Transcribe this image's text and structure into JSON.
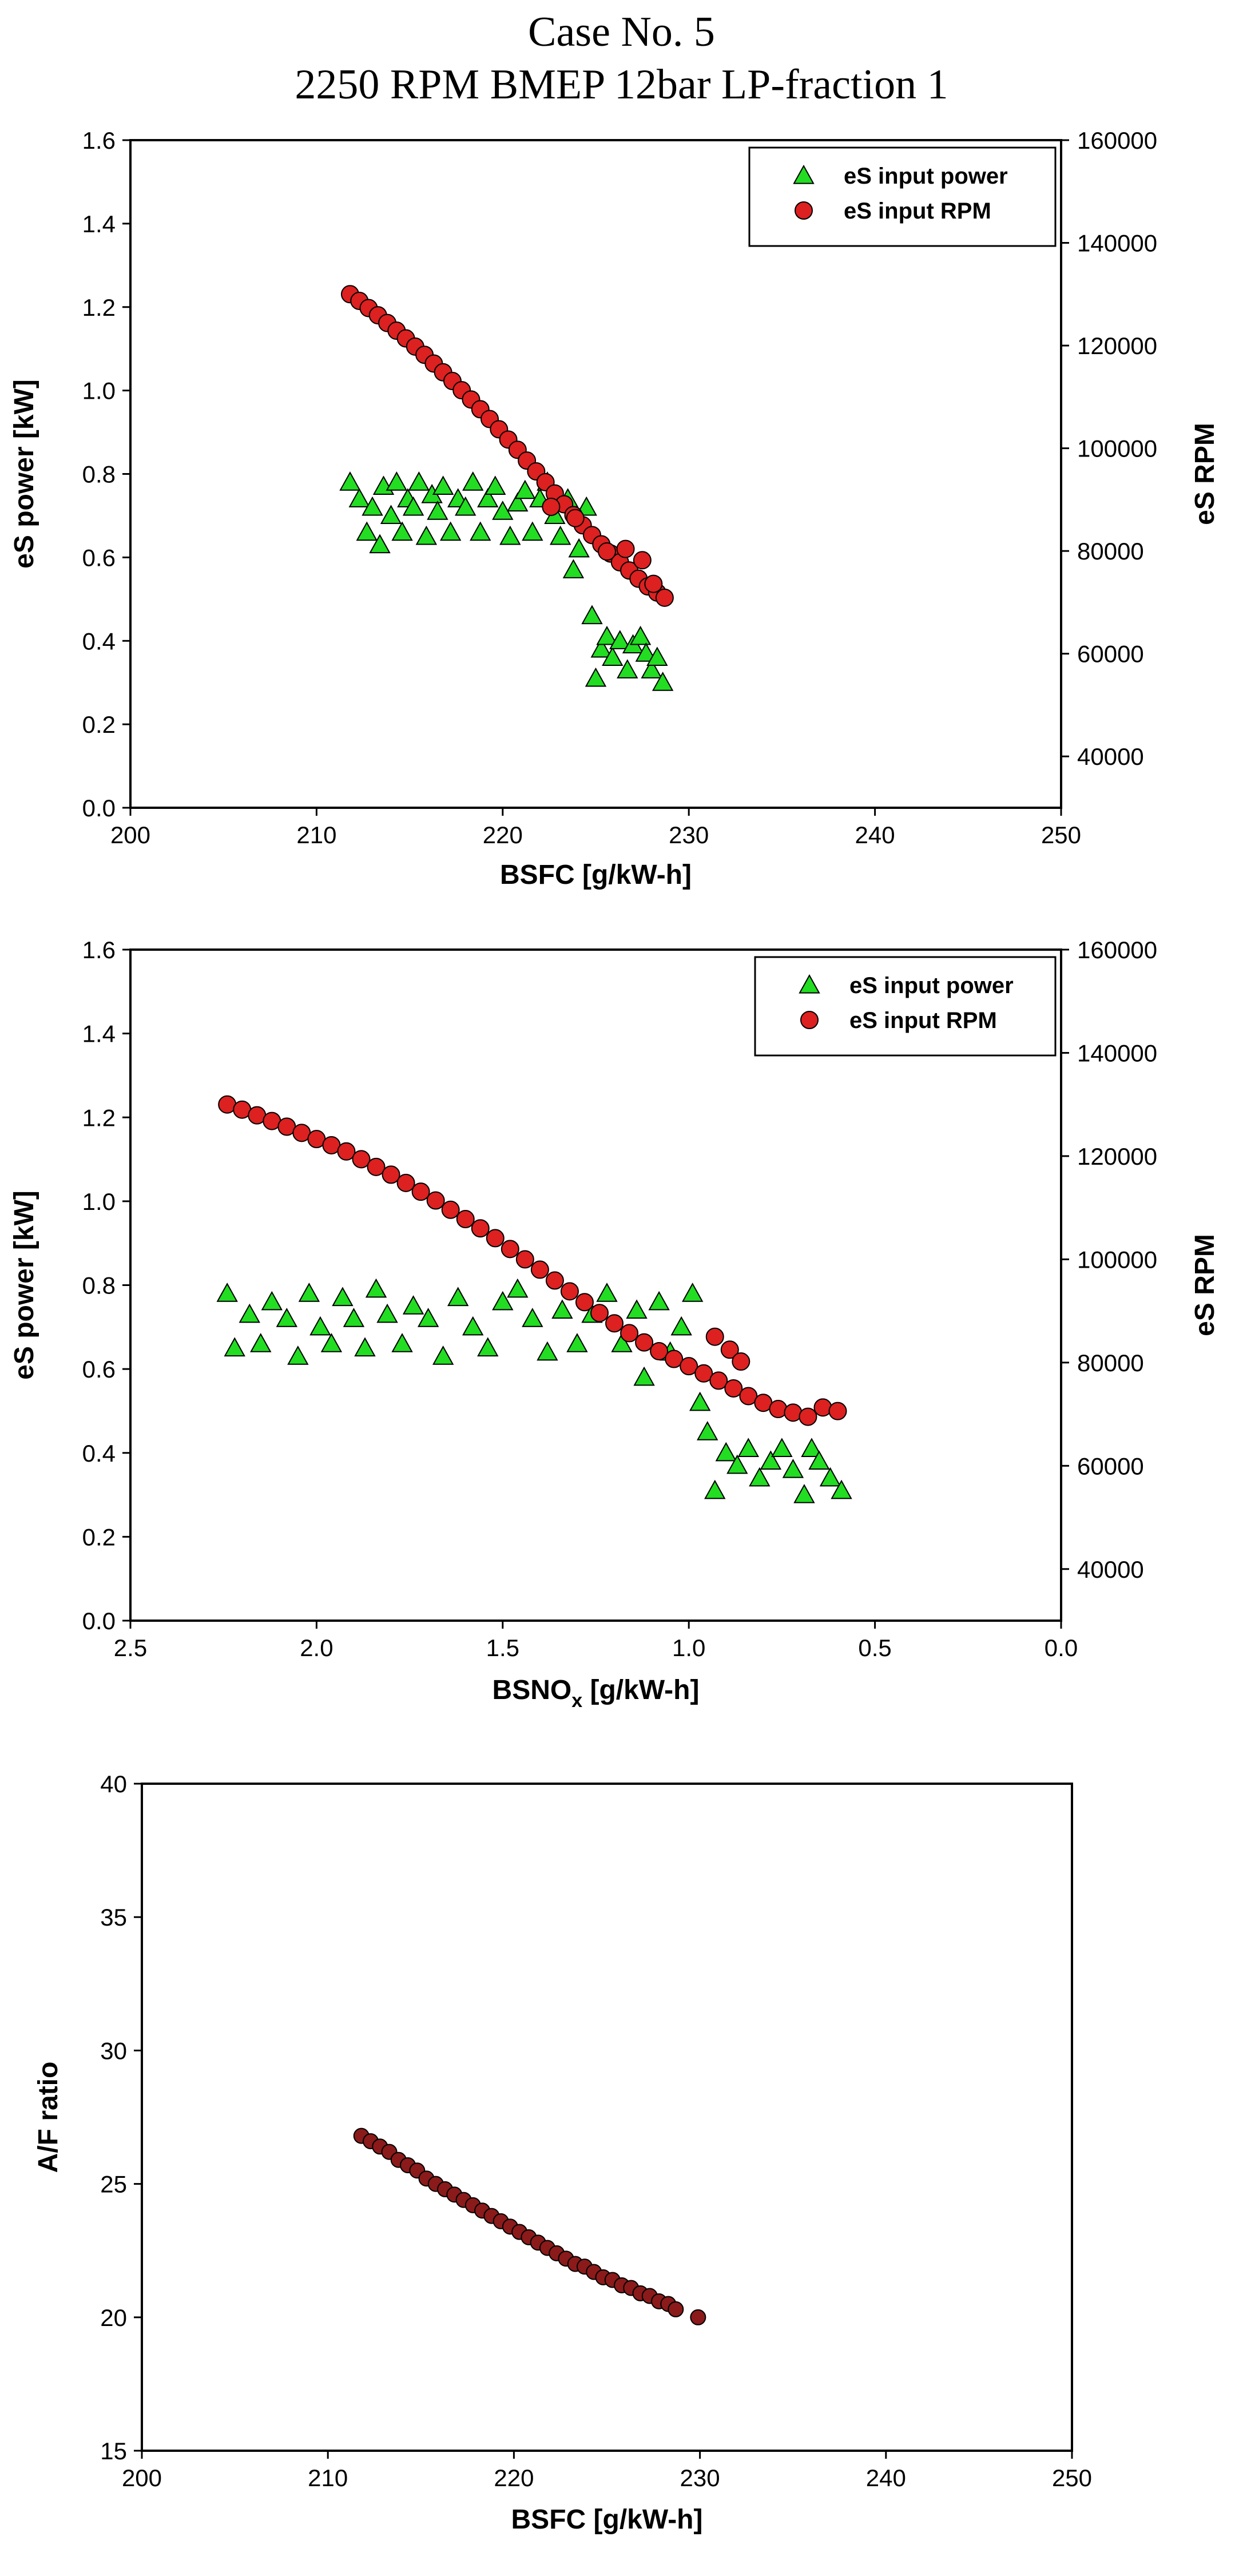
{
  "header": {
    "title_line1": "Case No. 5",
    "title_line2": "2250 RPM BMEP 12bar LP-fraction 1"
  },
  "colors": {
    "power_marker": "#22dd22",
    "rpm_marker": "#dd2020",
    "af_marker": "#8b1a1a",
    "marker_edge": "#000000"
  },
  "chart_data": [
    {
      "type": "scatter",
      "title": "",
      "xlabel": "BSFC [g/kW-h]",
      "ylabel": "eS power [kW]",
      "y2label": "eS RPM",
      "xlim": [
        200,
        250
      ],
      "ylim": [
        0.0,
        1.6
      ],
      "y2lim": [
        30000,
        160000
      ],
      "xticks": [
        "200",
        "210",
        "220",
        "230",
        "240",
        "250"
      ],
      "yticks": [
        "0.0",
        "0.2",
        "0.4",
        "0.6",
        "0.8",
        "1.0",
        "1.2",
        "1.4",
        "1.6"
      ],
      "y2ticks": [
        "40000",
        "60000",
        "80000",
        "100000",
        "120000",
        "140000",
        "160000"
      ],
      "legend": [
        "eS input power",
        "eS input RPM"
      ],
      "legend_position": "top-right",
      "series": [
        {
          "name": "eS input power",
          "axis": "left",
          "marker": "triangle",
          "points": [
            [
              211.8,
              0.78
            ],
            [
              212.3,
              0.74
            ],
            [
              212.7,
              0.66
            ],
            [
              213.0,
              0.72
            ],
            [
              213.4,
              0.63
            ],
            [
              213.6,
              0.77
            ],
            [
              214.0,
              0.7
            ],
            [
              214.3,
              0.78
            ],
            [
              214.6,
              0.66
            ],
            [
              214.9,
              0.74
            ],
            [
              215.2,
              0.72
            ],
            [
              215.5,
              0.78
            ],
            [
              215.9,
              0.65
            ],
            [
              216.2,
              0.75
            ],
            [
              216.5,
              0.71
            ],
            [
              216.8,
              0.77
            ],
            [
              217.2,
              0.66
            ],
            [
              217.6,
              0.74
            ],
            [
              218.0,
              0.72
            ],
            [
              218.4,
              0.78
            ],
            [
              218.8,
              0.66
            ],
            [
              219.2,
              0.74
            ],
            [
              219.6,
              0.77
            ],
            [
              220.0,
              0.71
            ],
            [
              220.4,
              0.65
            ],
            [
              220.8,
              0.73
            ],
            [
              221.2,
              0.76
            ],
            [
              221.6,
              0.66
            ],
            [
              222.0,
              0.74
            ],
            [
              222.4,
              0.78
            ],
            [
              222.8,
              0.7
            ],
            [
              223.1,
              0.65
            ],
            [
              223.5,
              0.74
            ],
            [
              223.8,
              0.57
            ],
            [
              224.1,
              0.62
            ],
            [
              224.5,
              0.72
            ],
            [
              224.8,
              0.46
            ],
            [
              225.0,
              0.31
            ],
            [
              225.3,
              0.38
            ],
            [
              225.6,
              0.41
            ],
            [
              225.9,
              0.36
            ],
            [
              226.3,
              0.4
            ],
            [
              226.7,
              0.33
            ],
            [
              227.0,
              0.39
            ],
            [
              227.4,
              0.41
            ],
            [
              227.7,
              0.37
            ],
            [
              228.0,
              0.33
            ],
            [
              228.3,
              0.36
            ],
            [
              228.6,
              0.3
            ]
          ]
        },
        {
          "name": "eS input RPM",
          "axis": "right",
          "marker": "circle",
          "points": [
            [
              211.8,
              130000
            ],
            [
              212.3,
              128700
            ],
            [
              212.8,
              127300
            ],
            [
              213.3,
              125900
            ],
            [
              213.8,
              124400
            ],
            [
              214.3,
              122900
            ],
            [
              214.8,
              121400
            ],
            [
              215.3,
              119800
            ],
            [
              215.8,
              118200
            ],
            [
              216.3,
              116500
            ],
            [
              216.8,
              114800
            ],
            [
              217.3,
              113100
            ],
            [
              217.8,
              111300
            ],
            [
              218.3,
              109500
            ],
            [
              218.8,
              107600
            ],
            [
              219.3,
              105700
            ],
            [
              219.8,
              103700
            ],
            [
              220.3,
              101700
            ],
            [
              220.8,
              99700
            ],
            [
              221.3,
              97600
            ],
            [
              221.8,
              95500
            ],
            [
              222.3,
              93400
            ],
            [
              222.8,
              91200
            ],
            [
              223.3,
              89100
            ],
            [
              223.8,
              87000
            ],
            [
              224.3,
              85000
            ],
            [
              224.8,
              83100
            ],
            [
              225.3,
              81300
            ],
            [
              225.8,
              79500
            ],
            [
              226.3,
              77800
            ],
            [
              226.8,
              76200
            ],
            [
              227.3,
              74600
            ],
            [
              227.8,
              73100
            ],
            [
              228.3,
              71900
            ],
            [
              228.7,
              70900
            ],
            [
              225.6,
              79900
            ],
            [
              226.6,
              80400
            ],
            [
              227.5,
              78200
            ],
            [
              228.1,
              73600
            ],
            [
              223.9,
              86400
            ],
            [
              222.6,
              88600
            ]
          ]
        }
      ]
    },
    {
      "type": "scatter",
      "title": "",
      "xlabel": "BSNO",
      "xlabel_sub": "x",
      "xlabel_unit": "[g/kW-h]",
      "ylabel": "eS power [kW]",
      "y2label": "eS RPM",
      "xlim": [
        2.5,
        0.0
      ],
      "ylim": [
        0.0,
        1.6
      ],
      "y2lim": [
        30000,
        160000
      ],
      "xticks": [
        "2.5",
        "2.0",
        "1.5",
        "1.0",
        "0.5",
        "0.0"
      ],
      "yticks": [
        "0.0",
        "0.2",
        "0.4",
        "0.6",
        "0.8",
        "1.0",
        "1.2",
        "1.4",
        "1.6"
      ],
      "y2ticks": [
        "40000",
        "60000",
        "80000",
        "100000",
        "120000",
        "140000",
        "160000"
      ],
      "legend": [
        "eS input power",
        "eS input RPM"
      ],
      "legend_position": "top-right",
      "series": [
        {
          "name": "eS input power",
          "axis": "left",
          "marker": "triangle",
          "points": [
            [
              2.24,
              0.78
            ],
            [
              2.22,
              0.65
            ],
            [
              2.18,
              0.73
            ],
            [
              2.15,
              0.66
            ],
            [
              2.12,
              0.76
            ],
            [
              2.08,
              0.72
            ],
            [
              2.05,
              0.63
            ],
            [
              2.02,
              0.78
            ],
            [
              1.99,
              0.7
            ],
            [
              1.96,
              0.66
            ],
            [
              1.93,
              0.77
            ],
            [
              1.9,
              0.72
            ],
            [
              1.87,
              0.65
            ],
            [
              1.84,
              0.79
            ],
            [
              1.81,
              0.73
            ],
            [
              1.77,
              0.66
            ],
            [
              1.74,
              0.75
            ],
            [
              1.7,
              0.72
            ],
            [
              1.66,
              0.63
            ],
            [
              1.62,
              0.77
            ],
            [
              1.58,
              0.7
            ],
            [
              1.54,
              0.65
            ],
            [
              1.5,
              0.76
            ],
            [
              1.46,
              0.79
            ],
            [
              1.42,
              0.72
            ],
            [
              1.38,
              0.64
            ],
            [
              1.34,
              0.74
            ],
            [
              1.3,
              0.66
            ],
            [
              1.26,
              0.73
            ],
            [
              1.22,
              0.78
            ],
            [
              1.18,
              0.66
            ],
            [
              1.14,
              0.74
            ],
            [
              1.12,
              0.58
            ],
            [
              1.08,
              0.76
            ],
            [
              1.05,
              0.64
            ],
            [
              1.02,
              0.7
            ],
            [
              0.99,
              0.78
            ],
            [
              0.97,
              0.52
            ],
            [
              0.95,
              0.45
            ],
            [
              0.93,
              0.31
            ],
            [
              0.9,
              0.4
            ],
            [
              0.87,
              0.37
            ],
            [
              0.84,
              0.41
            ],
            [
              0.81,
              0.34
            ],
            [
              0.78,
              0.38
            ],
            [
              0.75,
              0.41
            ],
            [
              0.72,
              0.36
            ],
            [
              0.69,
              0.3
            ],
            [
              0.67,
              0.41
            ],
            [
              0.65,
              0.38
            ],
            [
              0.62,
              0.34
            ],
            [
              0.59,
              0.31
            ]
          ]
        },
        {
          "name": "eS input RPM",
          "axis": "right",
          "marker": "circle",
          "points": [
            [
              2.24,
              130000
            ],
            [
              2.2,
              129000
            ],
            [
              2.16,
              127900
            ],
            [
              2.12,
              126800
            ],
            [
              2.08,
              125700
            ],
            [
              2.04,
              124500
            ],
            [
              2.0,
              123300
            ],
            [
              1.96,
              122100
            ],
            [
              1.92,
              120900
            ],
            [
              1.88,
              119400
            ],
            [
              1.84,
              117900
            ],
            [
              1.8,
              116400
            ],
            [
              1.76,
              114800
            ],
            [
              1.72,
              113100
            ],
            [
              1.68,
              111400
            ],
            [
              1.64,
              109600
            ],
            [
              1.6,
              107800
            ],
            [
              1.56,
              106000
            ],
            [
              1.52,
              104100
            ],
            [
              1.48,
              102000
            ],
            [
              1.44,
              100000
            ],
            [
              1.4,
              98000
            ],
            [
              1.36,
              95900
            ],
            [
              1.32,
              93800
            ],
            [
              1.28,
              91700
            ],
            [
              1.24,
              89600
            ],
            [
              1.2,
              87600
            ],
            [
              1.16,
              85700
            ],
            [
              1.12,
              83900
            ],
            [
              1.08,
              82200
            ],
            [
              1.04,
              80700
            ],
            [
              1.0,
              79300
            ],
            [
              0.96,
              77900
            ],
            [
              0.92,
              76500
            ],
            [
              0.88,
              75000
            ],
            [
              0.84,
              73500
            ],
            [
              0.8,
              72200
            ],
            [
              0.76,
              71000
            ],
            [
              0.72,
              70300
            ],
            [
              0.68,
              69500
            ],
            [
              0.64,
              71300
            ],
            [
              0.6,
              70600
            ],
            [
              0.93,
              85000
            ],
            [
              0.89,
              82500
            ],
            [
              0.86,
              80200
            ]
          ]
        }
      ]
    },
    {
      "type": "scatter",
      "title": "",
      "xlabel": "BSFC [g/kW-h]",
      "ylabel": "A/F ratio",
      "xlim": [
        200,
        250
      ],
      "ylim": [
        15,
        40
      ],
      "xticks": [
        "200",
        "210",
        "220",
        "230",
        "240",
        "250"
      ],
      "yticks": [
        "15",
        "20",
        "25",
        "30",
        "35",
        "40"
      ],
      "series": [
        {
          "name": "A/F ratio",
          "axis": "left",
          "marker": "circle",
          "points": [
            [
              211.8,
              26.8
            ],
            [
              212.3,
              26.6
            ],
            [
              212.8,
              26.4
            ],
            [
              213.3,
              26.2
            ],
            [
              213.8,
              25.9
            ],
            [
              214.3,
              25.7
            ],
            [
              214.8,
              25.5
            ],
            [
              215.3,
              25.2
            ],
            [
              215.8,
              25.0
            ],
            [
              216.3,
              24.8
            ],
            [
              216.8,
              24.6
            ],
            [
              217.3,
              24.4
            ],
            [
              217.8,
              24.2
            ],
            [
              218.3,
              24.0
            ],
            [
              218.8,
              23.8
            ],
            [
              219.3,
              23.6
            ],
            [
              219.8,
              23.4
            ],
            [
              220.3,
              23.2
            ],
            [
              220.8,
              23.0
            ],
            [
              221.3,
              22.8
            ],
            [
              221.8,
              22.6
            ],
            [
              222.3,
              22.4
            ],
            [
              222.8,
              22.2
            ],
            [
              223.3,
              22.0
            ],
            [
              223.8,
              21.9
            ],
            [
              224.3,
              21.7
            ],
            [
              224.8,
              21.5
            ],
            [
              225.3,
              21.4
            ],
            [
              225.8,
              21.2
            ],
            [
              226.3,
              21.1
            ],
            [
              226.8,
              20.9
            ],
            [
              227.3,
              20.8
            ],
            [
              227.8,
              20.6
            ],
            [
              228.3,
              20.5
            ],
            [
              228.7,
              20.3
            ],
            [
              229.9,
              20.0
            ]
          ]
        }
      ]
    }
  ]
}
